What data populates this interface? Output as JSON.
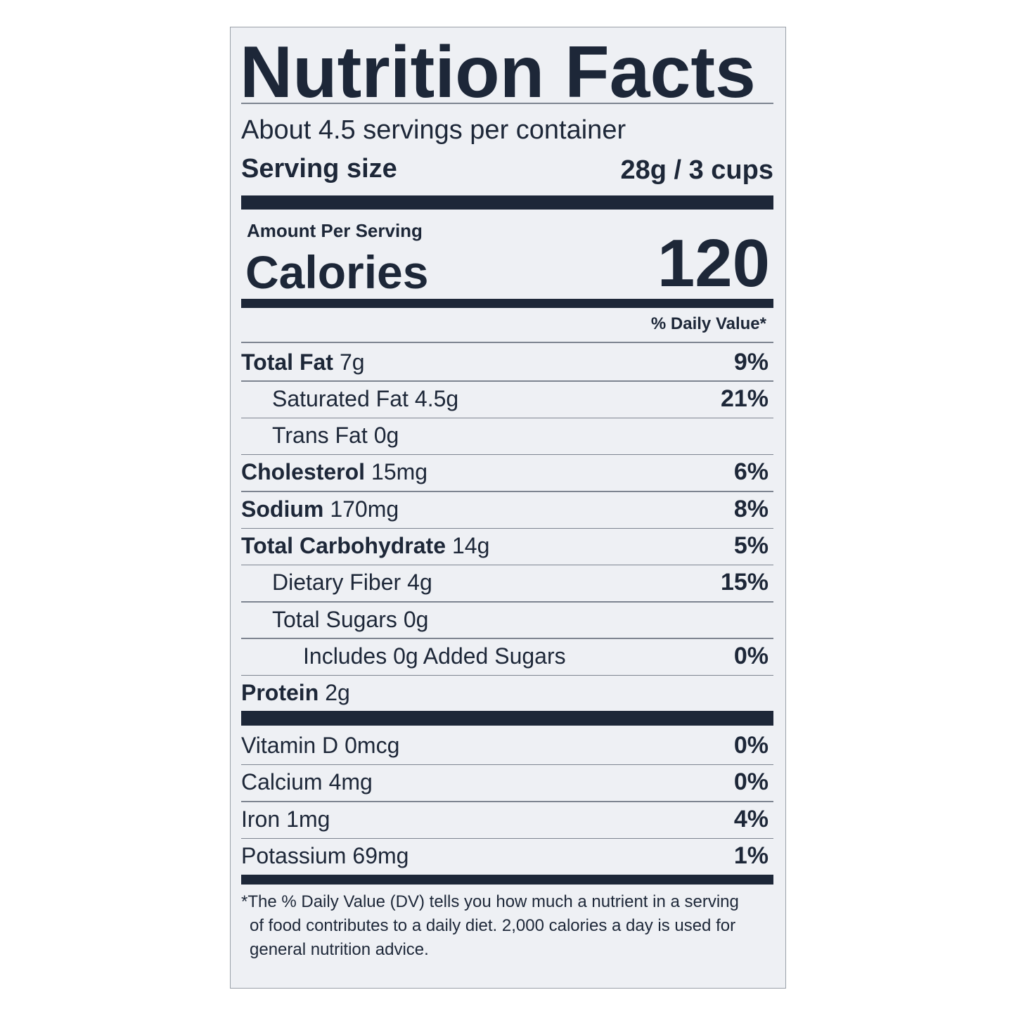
{
  "header": {
    "title": "Nutrition Facts",
    "servings": "About 4.5 servings per container",
    "serving_size_label": "Serving size",
    "serving_size": "28g / 3 cups"
  },
  "calories": {
    "amount_per_serving": "Amount Per Serving",
    "label": "Calories",
    "value": 120
  },
  "daily_value_header": "% Daily Value*",
  "nutrients": [
    {
      "name": "Total Fat",
      "amount": "7g",
      "dv": "9%"
    },
    {
      "name": "Saturated Fat",
      "amount": "4.5g",
      "dv": "21%"
    },
    {
      "name": "Trans Fat",
      "amount": "0g"
    },
    {
      "name": "Cholesterol",
      "amount": "15mg",
      "dv": "6%"
    },
    {
      "name": "Sodium",
      "amount": "170mg",
      "dv": "8%"
    },
    {
      "name": "Total Carbohydrate",
      "amount": "14g",
      "dv": "5%"
    },
    {
      "name": "Dietary Fiber",
      "amount": "4g",
      "dv": "15%"
    },
    {
      "name": "Total Sugars",
      "amount": "0g"
    },
    {
      "name": "Includes 0g Added Sugars",
      "dv": "0%"
    },
    {
      "name": "Protein",
      "amount": "2g"
    }
  ],
  "vitamins": [
    {
      "name": "Vitamin D",
      "amount": "0mcg",
      "dv": "0%"
    },
    {
      "name": "Calcium",
      "amount": "4mg",
      "dv": "0%"
    },
    {
      "name": "Iron",
      "amount": "1mg",
      "dv": "4%"
    },
    {
      "name": "Potassium",
      "amount": "69mg",
      "dv": "1%"
    }
  ],
  "footnote": "*The % Daily Value (DV) tells you how much a nutrient in a serving of food contributes to a daily diet. 2,000 calories a day is used for general nutrition advice."
}
